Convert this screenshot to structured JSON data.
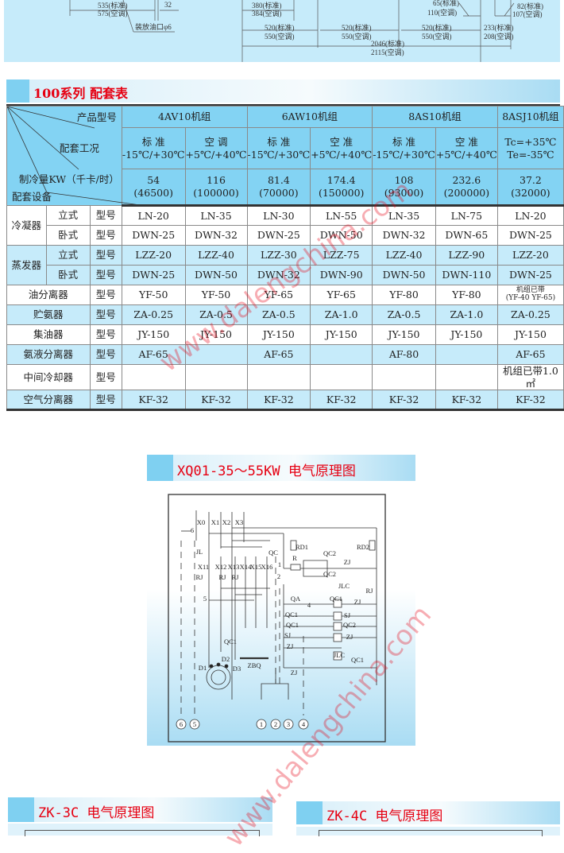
{
  "top_dimensions": {
    "d535": "535(标准)",
    "d575": "575(空调)",
    "d32": "32",
    "drain": "装放油口φ6",
    "d380": "380(标准)",
    "d384": "384(空调)",
    "d65": "65(标准)",
    "d110": "110(空调)",
    "d82": "82(标准)",
    "d107": "107(空调)",
    "d520a": "520(标准)",
    "d550a": "550(空调)",
    "d520b": "520(标准)",
    "d550b": "550(空调)",
    "d520c": "520(标准)",
    "d550c": "550(空调)",
    "d233": "233(标准)",
    "d208": "208(空调)",
    "d2046": "2046(标准)",
    "d2115": "2115(空调)"
  },
  "section_title": "100系列 配套表",
  "table": {
    "corner": {
      "product": "产品型号",
      "condition": "配套工况",
      "capacity": "制冷量KW（千卡/时）",
      "equipment": "配套设备"
    },
    "units": [
      "4AV10机组",
      "6AW10机组",
      "8AS10机组",
      "8ASJ10机组"
    ],
    "conditions": [
      {
        "name": "标  准",
        "range": "-15℃/+30℃"
      },
      {
        "name": "空  调",
        "range": "+5℃/+40℃"
      },
      {
        "name": "标  准",
        "range": "-15℃/+30℃"
      },
      {
        "name": "空  准",
        "range": "+5℃/+40℃"
      },
      {
        "name": "标  准",
        "range": "-15℃/+30℃"
      },
      {
        "name": "空  准",
        "range": "+5℃/+40℃"
      },
      {
        "name": "Tc=+35℃",
        "range": "Te=-35℃"
      }
    ],
    "capacity": [
      {
        "kw": "54",
        "kcal": "(46500)"
      },
      {
        "kw": "116",
        "kcal": "(100000)"
      },
      {
        "kw": "81.4",
        "kcal": "(70000)"
      },
      {
        "kw": "174.4",
        "kcal": "(150000)"
      },
      {
        "kw": "108",
        "kcal": "(93000)"
      },
      {
        "kw": "232.6",
        "kcal": "(200000)"
      },
      {
        "kw": "37.2",
        "kcal": "(32000)"
      }
    ],
    "model_label": "型号",
    "groups": {
      "condenser": "冷凝器",
      "evaporator": "蒸发器"
    },
    "rows": [
      {
        "type": "立式",
        "values": [
          "LN-20",
          "LN-35",
          "LN-30",
          "LN-55",
          "LN-35",
          "LN-75",
          "LN-20"
        ]
      },
      {
        "type": "卧式",
        "values": [
          "DWN-25",
          "DWN-32",
          "DWN-25",
          "DWN-50",
          "DWN-32",
          "DWN-65",
          "DWN-25"
        ]
      },
      {
        "type": "立式",
        "values": [
          "LZZ-20",
          "LZZ-40",
          "LZZ-30",
          "LZZ-75",
          "LZZ-40",
          "LZZ-90",
          "LZZ-20"
        ]
      },
      {
        "type": "卧式",
        "values": [
          "DWN-25",
          "DWN-50",
          "DWN-32",
          "DWN-90",
          "DWN-50",
          "DWN-110",
          "DWN-25"
        ]
      },
      {
        "name": "油分离器",
        "values": [
          "YF-50",
          "YF-50",
          "YF-65",
          "YF-65",
          "YF-80",
          "YF-80",
          "机组已带"
        ],
        "note": "(YF-40 YF-65)"
      },
      {
        "name": "贮氨器",
        "values": [
          "ZA-0.25",
          "ZA-0.5",
          "ZA-0.5",
          "ZA-1.0",
          "ZA-0.5",
          "ZA-1.0",
          "ZA-0.25"
        ]
      },
      {
        "name": "集油器",
        "values": [
          "JY-150",
          "JY-150",
          "JY-150",
          "JY-150",
          "JY-150",
          "JY-150",
          "JY-150"
        ]
      },
      {
        "name": "氨液分离器",
        "values": [
          "AF-65",
          "",
          "AF-65",
          "",
          "AF-80",
          "",
          "AF-65"
        ]
      },
      {
        "name": "中间冷却器",
        "values": [
          "",
          "",
          "",
          "",
          "",
          "",
          "机组已带1.0㎡"
        ]
      },
      {
        "name": "空气分离器",
        "values": [
          "KF-32",
          "KF-32",
          "KF-32",
          "KF-32",
          "KF-32",
          "KF-32",
          "KF-32"
        ]
      }
    ]
  },
  "diagram_title": "XQ01-35～55KW   电气原理图",
  "diagram_labels": {
    "X0": "X0",
    "X1": "X1",
    "X2": "X2",
    "X3": "X3",
    "n6": "6",
    "JL": "JL",
    "QC": "QC",
    "RD1": "RD1",
    "RD2": "RD2",
    "X11": "X11",
    "X12": "X12",
    "X13": "X13",
    "X14": "X14",
    "X15": "X15",
    "X16": "X16",
    "RJ1": "RJ",
    "RJ2": "RJ",
    "RJ3": "RJ",
    "R": "R",
    "QC2a": "QC2",
    "QC2b": "QC2",
    "ZJ1": "ZJ",
    "JLC1": "JLC",
    "RJ4": "RJ",
    "n1": "1",
    "n2": "2",
    "n5": "5",
    "QA": "QA",
    "n4": "4",
    "QC1a": "QC1",
    "ZJ2": "ZJ",
    "QC1b": "QC1",
    "QC1c": "QC1",
    "SJ1": "SJ",
    "QC2c": "QC2",
    "SJ2": "SJ",
    "ZJ3": "ZJ",
    "ZJ4": "ZJ",
    "JLC2": "JLC",
    "QC1d": "QC1",
    "ZJ5": "ZJ",
    "QC1e": "QC1",
    "D1": "D1",
    "D2": "D2",
    "D3": "D3",
    "ZBQ": "ZBQ",
    "c6": "6",
    "c5": "5",
    "c1": "1",
    "c2": "2",
    "c3": "3",
    "c4": "4"
  },
  "bottom_titles": {
    "left": "ZK-3C   电气原理图",
    "right": "ZK-4C   电气原理图"
  },
  "watermark": "www.dalengchina.com",
  "colors": {
    "title_red": "#e60012",
    "header_blue": "#83d3f3",
    "row_blue": "#c6ebfa"
  }
}
